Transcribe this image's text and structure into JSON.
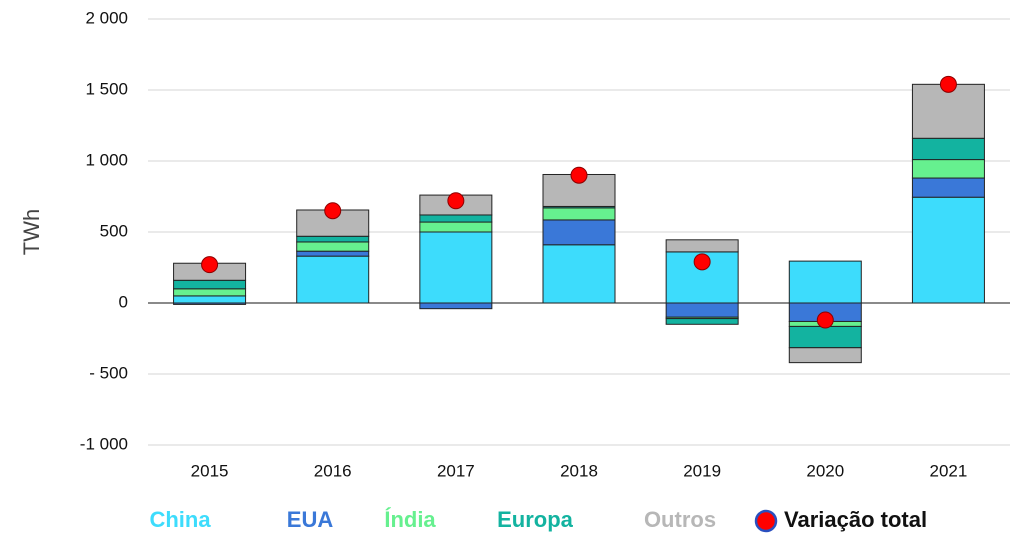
{
  "chart_data": {
    "type": "bar",
    "stacked": true,
    "y_label": "TWh",
    "categories": [
      "2015",
      "2016",
      "2017",
      "2018",
      "2019",
      "2020",
      "2021"
    ],
    "series": [
      {
        "name": "China",
        "color": "#3ddcfc",
        "values": [
          50,
          330,
          500,
          410,
          360,
          295,
          745
        ]
      },
      {
        "name": "EUA",
        "color": "#3a78d8",
        "values": [
          -10,
          35,
          -40,
          175,
          -100,
          -130,
          135
        ]
      },
      {
        "name": "Índia",
        "color": "#66f08f",
        "values": [
          50,
          65,
          70,
          85,
          -10,
          -35,
          130
        ]
      },
      {
        "name": "Europa",
        "color": "#13b3a0",
        "values": [
          60,
          40,
          50,
          10,
          -40,
          -150,
          150
        ]
      },
      {
        "name": "Outros",
        "color": "#b7b7b7",
        "values": [
          120,
          185,
          140,
          225,
          85,
          -105,
          380
        ]
      }
    ],
    "total": {
      "name": "Variação total",
      "color": "#ff0000",
      "values": [
        270,
        650,
        720,
        900,
        290,
        -120,
        1540
      ]
    },
    "ylim": [
      -1000,
      2000
    ],
    "yticks": [
      {
        "value": -1000,
        "label": "-1 000"
      },
      {
        "value": -500,
        "label": "- 500"
      },
      0,
      500,
      {
        "value": 1000,
        "label": "1 000"
      },
      {
        "value": 1500,
        "label": "1 500"
      },
      {
        "value": 2000,
        "label": "2 000"
      }
    ],
    "grid": true
  }
}
